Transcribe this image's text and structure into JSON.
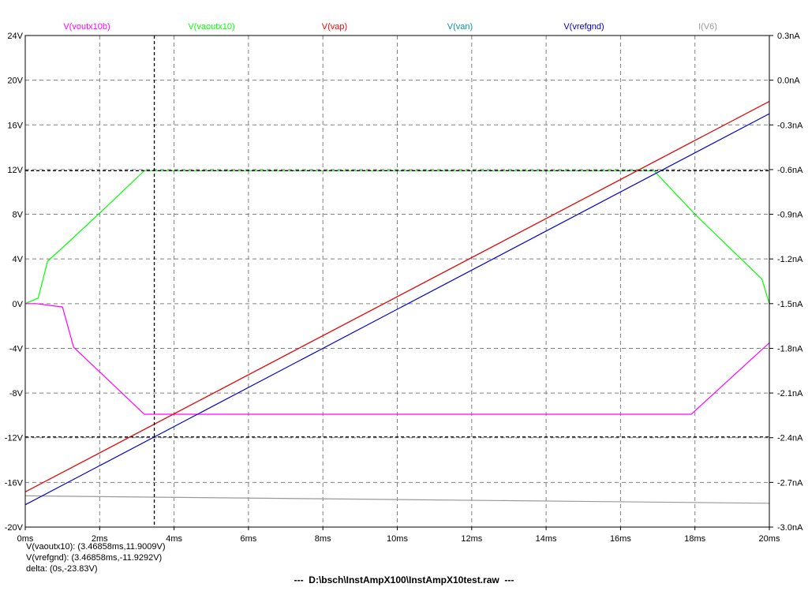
{
  "chart_data": {
    "type": "line",
    "xlabel": "",
    "ylabel": "",
    "x_unit": "ms",
    "xlim": [
      0,
      20
    ],
    "ylim": [
      -20,
      24
    ],
    "y2lim": [
      -3.0,
      0.3
    ],
    "grid": true,
    "x_ticks": [
      "0ms",
      "2ms",
      "4ms",
      "6ms",
      "8ms",
      "10ms",
      "12ms",
      "14ms",
      "16ms",
      "18ms",
      "20ms"
    ],
    "y_ticks": [
      "24V",
      "20V",
      "16V",
      "12V",
      "8V",
      "4V",
      "0V",
      "-4V",
      "-8V",
      "-12V",
      "-16V",
      "-20V"
    ],
    "y2_ticks": [
      "0.3nA",
      "0.0nA",
      "-0.3nA",
      "-0.6nA",
      "-0.9nA",
      "-1.2nA",
      "-1.5nA",
      "-1.8nA",
      "-2.1nA",
      "-2.4nA",
      "-2.7nA",
      "-3.0nA"
    ],
    "series": [
      {
        "name": "V(voutx10b)",
        "color": "#ff00ff",
        "axis": "left",
        "x": [
          0,
          0.3,
          1.0,
          1.3,
          3.2,
          17.9,
          20
        ],
        "y": [
          0,
          0,
          -0.3,
          -3.9,
          -9.9,
          -9.9,
          -3.5
        ]
      },
      {
        "name": "V(vaoutx10)",
        "color": "#00ff00",
        "axis": "left",
        "x": [
          0,
          0.35,
          0.6,
          1.0,
          2.0,
          3.2,
          16.9,
          18.0,
          19.8,
          20
        ],
        "y": [
          0,
          0.5,
          3.8,
          5.0,
          8.1,
          11.9,
          11.9,
          8.0,
          2.2,
          0
        ]
      },
      {
        "name": "V(vap)",
        "color": "#ff0000",
        "axis": "left",
        "x": [
          0,
          20
        ],
        "y": [
          -16.85,
          18.1
        ]
      },
      {
        "name": "V(van)",
        "color": "#009999",
        "axis": "left",
        "x": [
          0,
          20
        ],
        "y": [
          -16.85,
          18.1
        ]
      },
      {
        "name": "V(vrefgnd)",
        "color": "#0000cc",
        "axis": "left",
        "x": [
          0,
          20
        ],
        "y": [
          -18.0,
          17.0
        ]
      },
      {
        "name": "I(V6)",
        "color": "#999999",
        "axis": "right",
        "x": [
          0,
          20
        ],
        "y": [
          -2.79,
          -2.84
        ]
      }
    ],
    "cursors": {
      "vertical_x": 3.46858,
      "horizontal_y": [
        11.9009,
        -11.9292
      ]
    }
  },
  "readout": {
    "line1": "V(vaoutx10): (3.46858ms,11.9009V)",
    "line2": "V(vrefgnd): (3.46858ms,-11.9292V)",
    "line3": "delta: (0s,-23.83V)"
  },
  "filename": "---  D:\\bsch\\InstAmpX100\\InstAmpX10test.raw  ---"
}
